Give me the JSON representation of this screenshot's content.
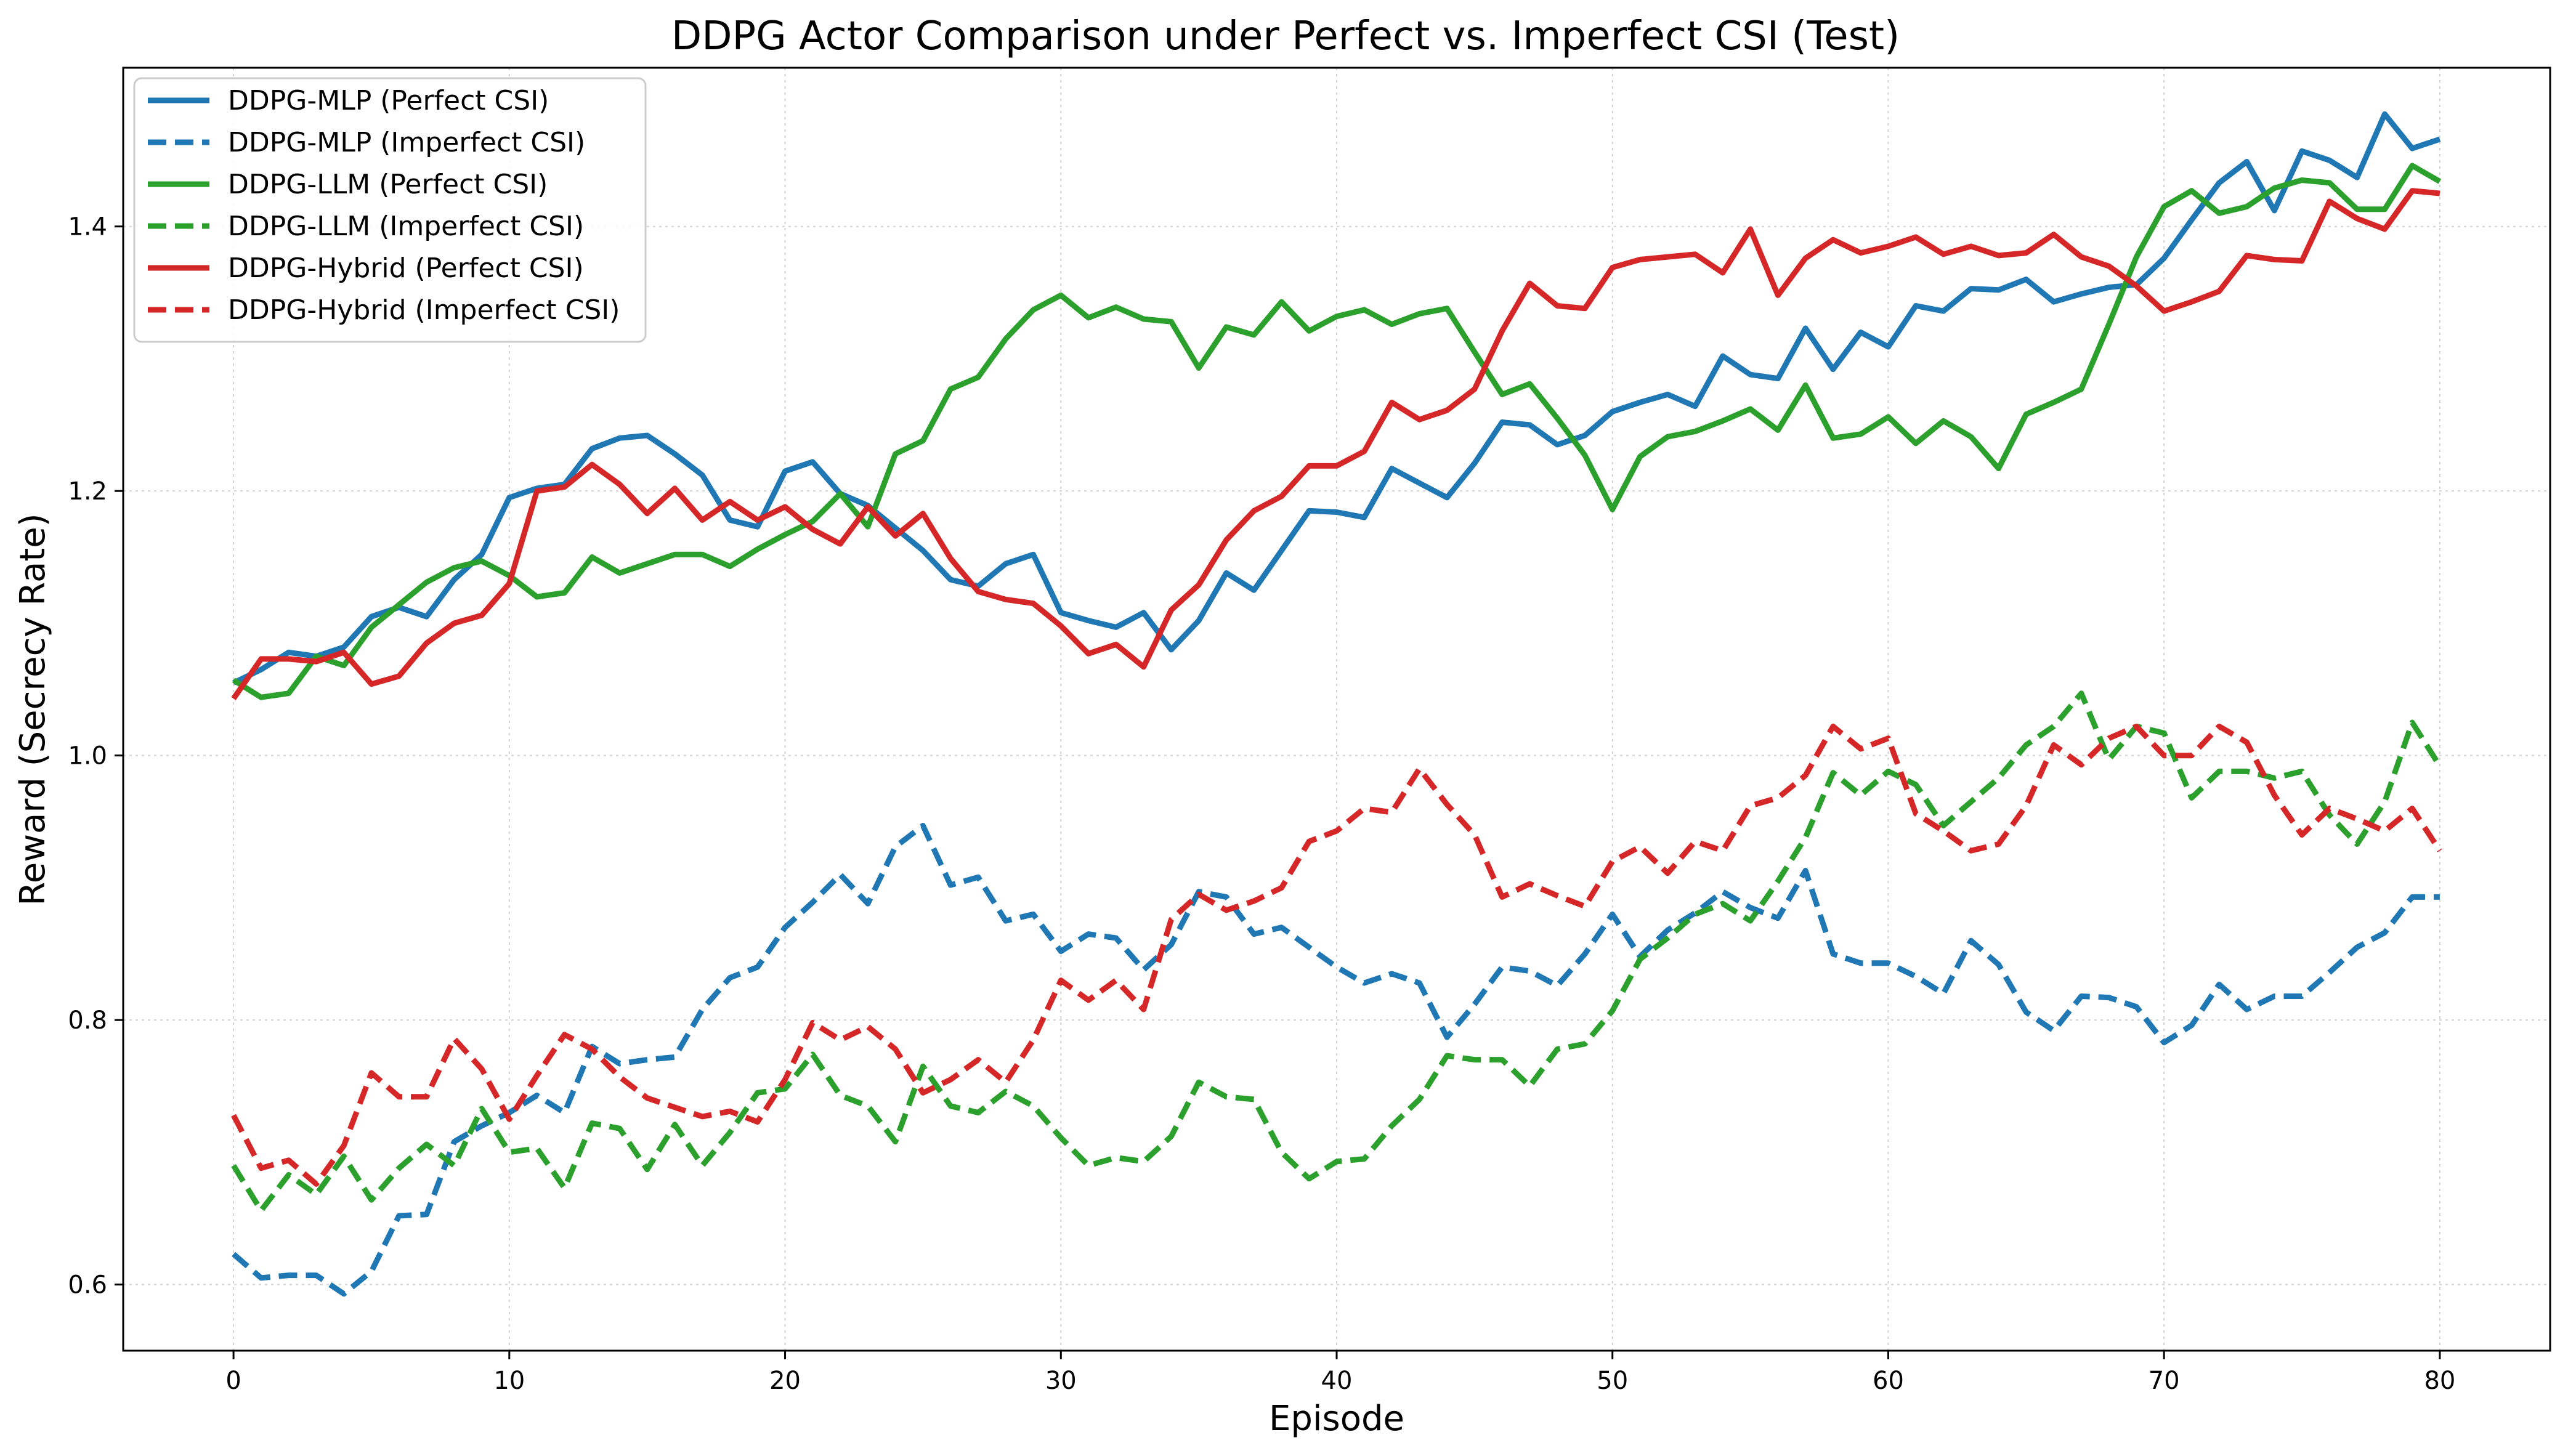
{
  "chart_data": {
    "type": "line",
    "title": "DDPG Actor Comparison under Perfect vs. Imperfect CSI (Test)",
    "xlabel": "Episode",
    "ylabel": "Reward (Secrecy Rate)",
    "xlim": [
      -4,
      84
    ],
    "ylim": [
      0.55,
      1.52
    ],
    "xticks": [
      0,
      10,
      20,
      30,
      40,
      50,
      60,
      70,
      80
    ],
    "yticks": [
      0.6,
      0.8,
      1.0,
      1.2,
      1.4
    ],
    "ytick_labels": [
      "0.6",
      "0.8",
      "1.0",
      "1.2",
      "1.4"
    ],
    "grid": true,
    "legend_position": "top-left",
    "series": [
      {
        "name": "DDPG-MLP (Perfect CSI)",
        "color": "#1f77b4",
        "linestyle": "solid",
        "values": [
          1.055,
          1.065,
          1.078,
          1.075,
          1.082,
          1.105,
          1.112,
          1.105,
          1.133,
          1.152,
          1.195,
          1.202,
          1.205,
          1.232,
          1.24,
          1.242,
          1.228,
          1.212,
          1.178,
          1.173,
          1.215,
          1.222,
          1.198,
          1.189,
          1.172,
          1.155,
          1.133,
          1.128,
          1.145,
          1.152,
          1.108,
          1.102,
          1.097,
          1.108,
          1.08,
          1.102,
          1.138,
          1.125,
          1.155,
          1.185,
          1.184,
          1.18,
          1.217,
          1.206,
          1.195,
          1.221,
          1.252,
          1.25,
          1.235,
          1.242,
          1.26,
          1.267,
          1.273,
          1.264,
          1.302,
          1.288,
          1.285,
          1.323,
          1.292,
          1.32,
          1.309,
          1.34,
          1.336,
          1.353,
          1.352,
          1.36,
          1.343,
          1.349,
          1.354,
          1.356,
          1.376,
          1.405,
          1.433,
          1.449,
          1.412,
          1.457,
          1.45,
          1.437,
          1.485,
          1.459,
          1.466
        ]
      },
      {
        "name": "DDPG-MLP (Imperfect CSI)",
        "color": "#1f77b4",
        "linestyle": "dashed",
        "values": [
          0.623,
          0.605,
          0.607,
          0.607,
          0.593,
          0.61,
          0.652,
          0.653,
          0.708,
          0.72,
          0.73,
          0.743,
          0.73,
          0.78,
          0.767,
          0.77,
          0.772,
          0.808,
          0.832,
          0.84,
          0.87,
          0.889,
          0.91,
          0.888,
          0.931,
          0.947,
          0.902,
          0.908,
          0.875,
          0.88,
          0.852,
          0.865,
          0.862,
          0.838,
          0.857,
          0.897,
          0.893,
          0.865,
          0.87,
          0.855,
          0.84,
          0.828,
          0.835,
          0.828,
          0.787,
          0.812,
          0.84,
          0.837,
          0.826,
          0.85,
          0.88,
          0.848,
          0.868,
          0.881,
          0.897,
          0.885,
          0.877,
          0.913,
          0.85,
          0.843,
          0.843,
          0.833,
          0.82,
          0.86,
          0.842,
          0.806,
          0.792,
          0.818,
          0.817,
          0.81,
          0.783,
          0.796,
          0.827,
          0.808,
          0.818,
          0.818,
          0.836,
          0.855,
          0.866,
          0.893,
          0.893
        ]
      },
      {
        "name": "DDPG-LLM (Perfect CSI)",
        "color": "#2ca02c",
        "linestyle": "solid",
        "values": [
          1.057,
          1.044,
          1.047,
          1.075,
          1.068,
          1.097,
          1.114,
          1.131,
          1.142,
          1.147,
          1.136,
          1.12,
          1.123,
          1.15,
          1.138,
          1.145,
          1.152,
          1.152,
          1.143,
          1.156,
          1.167,
          1.177,
          1.198,
          1.173,
          1.228,
          1.238,
          1.277,
          1.286,
          1.315,
          1.337,
          1.348,
          1.331,
          1.339,
          1.33,
          1.328,
          1.293,
          1.324,
          1.318,
          1.343,
          1.321,
          1.332,
          1.337,
          1.326,
          1.334,
          1.338,
          1.305,
          1.273,
          1.281,
          1.255,
          1.227,
          1.186,
          1.226,
          1.241,
          1.245,
          1.253,
          1.262,
          1.246,
          1.28,
          1.24,
          1.243,
          1.256,
          1.236,
          1.253,
          1.241,
          1.217,
          1.258,
          1.267,
          1.277,
          1.326,
          1.377,
          1.415,
          1.427,
          1.41,
          1.415,
          1.429,
          1.435,
          1.433,
          1.413,
          1.413,
          1.446,
          1.434
        ]
      },
      {
        "name": "DDPG-LLM (Imperfect CSI)",
        "color": "#2ca02c",
        "linestyle": "dashed",
        "values": [
          0.69,
          0.656,
          0.683,
          0.668,
          0.697,
          0.664,
          0.688,
          0.706,
          0.69,
          0.733,
          0.7,
          0.703,
          0.673,
          0.722,
          0.718,
          0.687,
          0.721,
          0.69,
          0.715,
          0.745,
          0.748,
          0.774,
          0.743,
          0.735,
          0.708,
          0.765,
          0.735,
          0.73,
          0.746,
          0.735,
          0.711,
          0.69,
          0.696,
          0.693,
          0.712,
          0.753,
          0.742,
          0.74,
          0.7,
          0.68,
          0.693,
          0.695,
          0.72,
          0.74,
          0.773,
          0.77,
          0.77,
          0.75,
          0.778,
          0.782,
          0.807,
          0.846,
          0.862,
          0.88,
          0.888,
          0.875,
          0.905,
          0.938,
          0.987,
          0.97,
          0.988,
          0.978,
          0.947,
          0.965,
          0.983,
          1.008,
          1.022,
          1.047,
          0.997,
          1.022,
          1.017,
          0.968,
          0.988,
          0.988,
          0.983,
          0.988,
          0.955,
          0.933,
          0.965,
          1.025,
          0.992
        ]
      },
      {
        "name": "DDPG-Hybrid (Perfect CSI)",
        "color": "#d62728",
        "linestyle": "solid",
        "values": [
          1.043,
          1.073,
          1.073,
          1.071,
          1.078,
          1.054,
          1.06,
          1.085,
          1.1,
          1.106,
          1.13,
          1.2,
          1.203,
          1.22,
          1.205,
          1.183,
          1.202,
          1.178,
          1.192,
          1.178,
          1.188,
          1.171,
          1.16,
          1.188,
          1.166,
          1.183,
          1.149,
          1.124,
          1.118,
          1.115,
          1.098,
          1.077,
          1.084,
          1.067,
          1.11,
          1.129,
          1.163,
          1.185,
          1.196,
          1.219,
          1.219,
          1.23,
          1.267,
          1.254,
          1.261,
          1.277,
          1.321,
          1.357,
          1.34,
          1.338,
          1.369,
          1.375,
          1.377,
          1.379,
          1.365,
          1.398,
          1.348,
          1.376,
          1.39,
          1.38,
          1.385,
          1.392,
          1.379,
          1.385,
          1.378,
          1.38,
          1.394,
          1.377,
          1.37,
          1.355,
          1.336,
          1.343,
          1.351,
          1.378,
          1.375,
          1.374,
          1.419,
          1.406,
          1.398,
          1.427,
          1.425
        ]
      },
      {
        "name": "DDPG-Hybrid (Imperfect CSI)",
        "color": "#d62728",
        "linestyle": "dashed",
        "values": [
          0.728,
          0.688,
          0.694,
          0.676,
          0.705,
          0.76,
          0.742,
          0.742,
          0.786,
          0.763,
          0.725,
          0.758,
          0.789,
          0.778,
          0.757,
          0.741,
          0.734,
          0.727,
          0.731,
          0.723,
          0.755,
          0.798,
          0.785,
          0.795,
          0.778,
          0.745,
          0.755,
          0.77,
          0.753,
          0.785,
          0.83,
          0.815,
          0.83,
          0.808,
          0.876,
          0.895,
          0.883,
          0.89,
          0.9,
          0.935,
          0.943,
          0.96,
          0.957,
          0.99,
          0.963,
          0.94,
          0.893,
          0.903,
          0.894,
          0.886,
          0.92,
          0.931,
          0.911,
          0.935,
          0.928,
          0.962,
          0.968,
          0.985,
          1.022,
          1.005,
          1.013,
          0.956,
          0.943,
          0.928,
          0.933,
          0.962,
          1.008,
          0.993,
          1.013,
          1.022,
          1.0,
          1.0,
          1.022,
          1.01,
          0.97,
          0.94,
          0.96,
          0.952,
          0.943,
          0.96,
          0.928
        ]
      }
    ]
  }
}
